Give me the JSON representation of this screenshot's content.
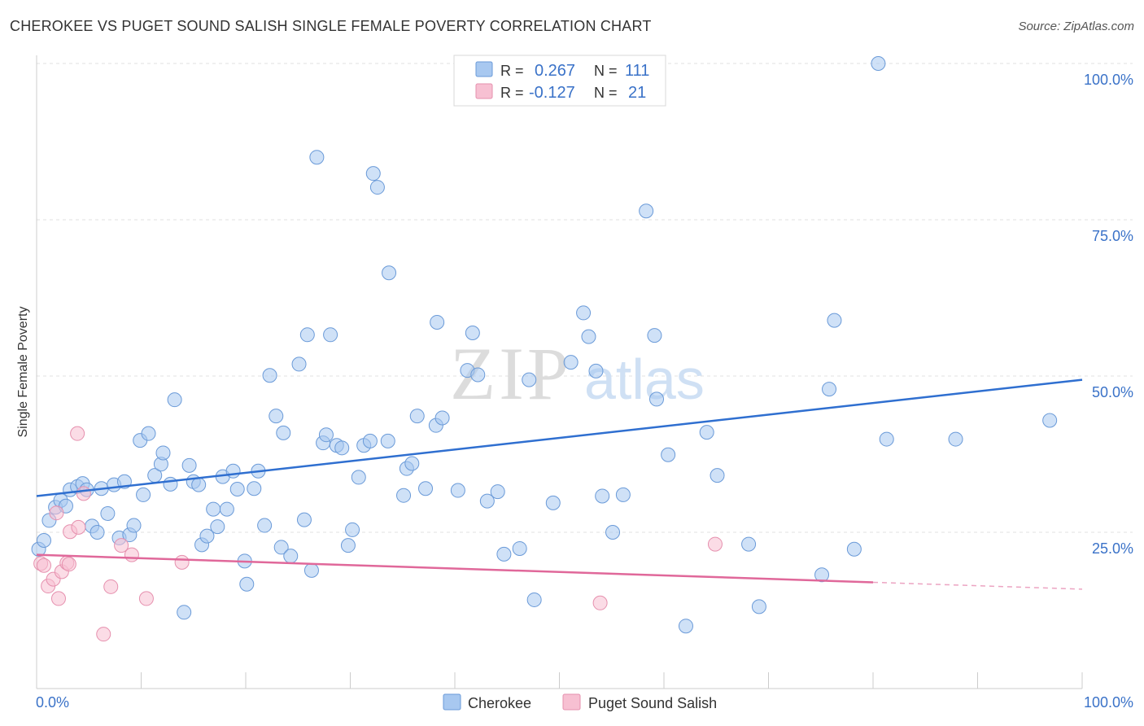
{
  "header": {
    "title": "CHEROKEE VS PUGET SOUND SALISH SINGLE FEMALE POVERTY CORRELATION CHART",
    "source": "Source: ZipAtlas.com"
  },
  "colors": {
    "blue": "#a8c8f0",
    "blue_stroke": "#6a9ad8",
    "blue_line": "#2f6fd0",
    "pink": "#f7c0d2",
    "pink_stroke": "#e690ae",
    "pink_line": "#e0689a",
    "tick_label": "#3a72c8"
  },
  "watermark": {
    "zip": "ZIP",
    "atlas": "atlas"
  },
  "stats": [
    {
      "r_label": "R =",
      "r_value": "0.267",
      "n_label": "N =",
      "n_value": "111"
    },
    {
      "r_label": "R =",
      "r_value": "-0.127",
      "n_label": "N =",
      "n_value": "21"
    }
  ],
  "chart_data": {
    "type": "scatter",
    "title": "CHEROKEE VS PUGET SOUND SALISH SINGLE FEMALE POVERTY CORRELATION CHART",
    "xlabel": "",
    "ylabel": "Single Female Poverty",
    "xlim": [
      0,
      100
    ],
    "ylim": [
      0,
      100
    ],
    "x_tick_labels": [
      "0.0%",
      "100.0%"
    ],
    "y_ticks": [
      25,
      50,
      75,
      100
    ],
    "y_tick_labels": [
      "25.0%",
      "50.0%",
      "75.0%",
      "100.0%"
    ],
    "grid": true,
    "legend_position": "bottom-center",
    "series": [
      {
        "name": "Cherokee",
        "r": 0.267,
        "n": 111,
        "trend": {
          "x": [
            0,
            100
          ],
          "y": [
            30.8,
            49.4
          ]
        },
        "points": [
          [
            0.2,
            22.3
          ],
          [
            0.7,
            23.7
          ],
          [
            1.2,
            26.9
          ],
          [
            1.8,
            29
          ],
          [
            2.3,
            30.1
          ],
          [
            2.8,
            29.2
          ],
          [
            3.2,
            31.8
          ],
          [
            3.9,
            32.3
          ],
          [
            4.4,
            32.8
          ],
          [
            4.8,
            31.8
          ],
          [
            5.3,
            26
          ],
          [
            5.8,
            25
          ],
          [
            6.2,
            32
          ],
          [
            6.8,
            28
          ],
          [
            7.4,
            32.6
          ],
          [
            7.9,
            24.1
          ],
          [
            8.4,
            33.1
          ],
          [
            8.9,
            24.6
          ],
          [
            9.3,
            26.1
          ],
          [
            10.2,
            31
          ],
          [
            9.9,
            39.7
          ],
          [
            10.7,
            40.8
          ],
          [
            11.3,
            34.1
          ],
          [
            11.9,
            35.9
          ],
          [
            12.1,
            37.7
          ],
          [
            12.8,
            32.7
          ],
          [
            13.2,
            46.2
          ],
          [
            14.1,
            12.2
          ],
          [
            14.6,
            35.7
          ],
          [
            15,
            33.1
          ],
          [
            15.5,
            32.6
          ],
          [
            15.8,
            23
          ],
          [
            16.3,
            24.4
          ],
          [
            16.9,
            28.7
          ],
          [
            17.3,
            25.9
          ],
          [
            17.8,
            33.9
          ],
          [
            18.2,
            28.7
          ],
          [
            18.8,
            34.8
          ],
          [
            19.2,
            31.9
          ],
          [
            19.9,
            20.4
          ],
          [
            20.1,
            16.7
          ],
          [
            20.8,
            32
          ],
          [
            21.2,
            34.8
          ],
          [
            21.8,
            26.1
          ],
          [
            22.3,
            50.1
          ],
          [
            22.9,
            43.6
          ],
          [
            23.4,
            22.6
          ],
          [
            23.6,
            40.9
          ],
          [
            24.3,
            21.2
          ],
          [
            25.1,
            51.9
          ],
          [
            25.6,
            27
          ],
          [
            25.9,
            56.6
          ],
          [
            26.3,
            18.9
          ],
          [
            26.8,
            85
          ],
          [
            27.4,
            39.3
          ],
          [
            27.7,
            40.6
          ],
          [
            28.1,
            56.6
          ],
          [
            28.7,
            38.9
          ],
          [
            29.2,
            38.5
          ],
          [
            29.8,
            22.9
          ],
          [
            30.2,
            25.4
          ],
          [
            30.8,
            33.8
          ],
          [
            31.3,
            38.9
          ],
          [
            31.9,
            39.6
          ],
          [
            32.2,
            82.4
          ],
          [
            32.6,
            80.2
          ],
          [
            33.6,
            39.6
          ],
          [
            33.7,
            66.5
          ],
          [
            35.1,
            30.9
          ],
          [
            35.4,
            35.2
          ],
          [
            35.9,
            36
          ],
          [
            36.4,
            43.6
          ],
          [
            37.2,
            32
          ],
          [
            38.2,
            42.1
          ],
          [
            38.3,
            58.6
          ],
          [
            38.8,
            43.3
          ],
          [
            40.3,
            31.7
          ],
          [
            41.2,
            50.9
          ],
          [
            41.7,
            56.9
          ],
          [
            42.2,
            50.2
          ],
          [
            43.1,
            30
          ],
          [
            44.1,
            31.5
          ],
          [
            44.7,
            21.5
          ],
          [
            46.2,
            22.4
          ],
          [
            47.1,
            49.4
          ],
          [
            47.6,
            14.2
          ],
          [
            49.4,
            29.7
          ],
          [
            51.1,
            52.2
          ],
          [
            52.3,
            60.1
          ],
          [
            52.8,
            56.3
          ],
          [
            53.5,
            50.8
          ],
          [
            54.1,
            30.8
          ],
          [
            55.1,
            25
          ],
          [
            56.1,
            31
          ],
          [
            58.3,
            76.4
          ],
          [
            59.1,
            56.5
          ],
          [
            59.3,
            46.3
          ],
          [
            60.4,
            37.4
          ],
          [
            62.1,
            10
          ],
          [
            64.1,
            41
          ],
          [
            65.1,
            34.1
          ],
          [
            68.1,
            23.1
          ],
          [
            69.1,
            13.1
          ],
          [
            75.1,
            18.2
          ],
          [
            75.8,
            47.9
          ],
          [
            76.3,
            58.9
          ],
          [
            78.2,
            22.3
          ],
          [
            80.5,
            100
          ],
          [
            81.3,
            39.9
          ],
          [
            87.9,
            39.9
          ],
          [
            96.9,
            42.9
          ]
        ]
      },
      {
        "name": "Puget Sound Salish",
        "r": -0.127,
        "n": 21,
        "trend": {
          "x": [
            0,
            100
          ],
          "y": [
            21.4,
            15.9
          ],
          "solid_until_x": 80
        },
        "points": [
          [
            0.4,
            20
          ],
          [
            0.7,
            19.7
          ],
          [
            1.1,
            16.4
          ],
          [
            1.6,
            17.5
          ],
          [
            1.9,
            28.1
          ],
          [
            2.1,
            14.4
          ],
          [
            2.4,
            18.7
          ],
          [
            2.9,
            20.1
          ],
          [
            3.2,
            25.1
          ],
          [
            3.9,
            40.8
          ],
          [
            4,
            25.8
          ],
          [
            4.5,
            31.2
          ],
          [
            6.4,
            8.7
          ],
          [
            7.1,
            16.3
          ],
          [
            8.1,
            22.9
          ],
          [
            9.1,
            21.4
          ],
          [
            10.5,
            14.4
          ],
          [
            13.9,
            20.2
          ],
          [
            53.9,
            13.7
          ],
          [
            64.9,
            23.1
          ],
          [
            3.1,
            19.9
          ]
        ]
      }
    ]
  }
}
